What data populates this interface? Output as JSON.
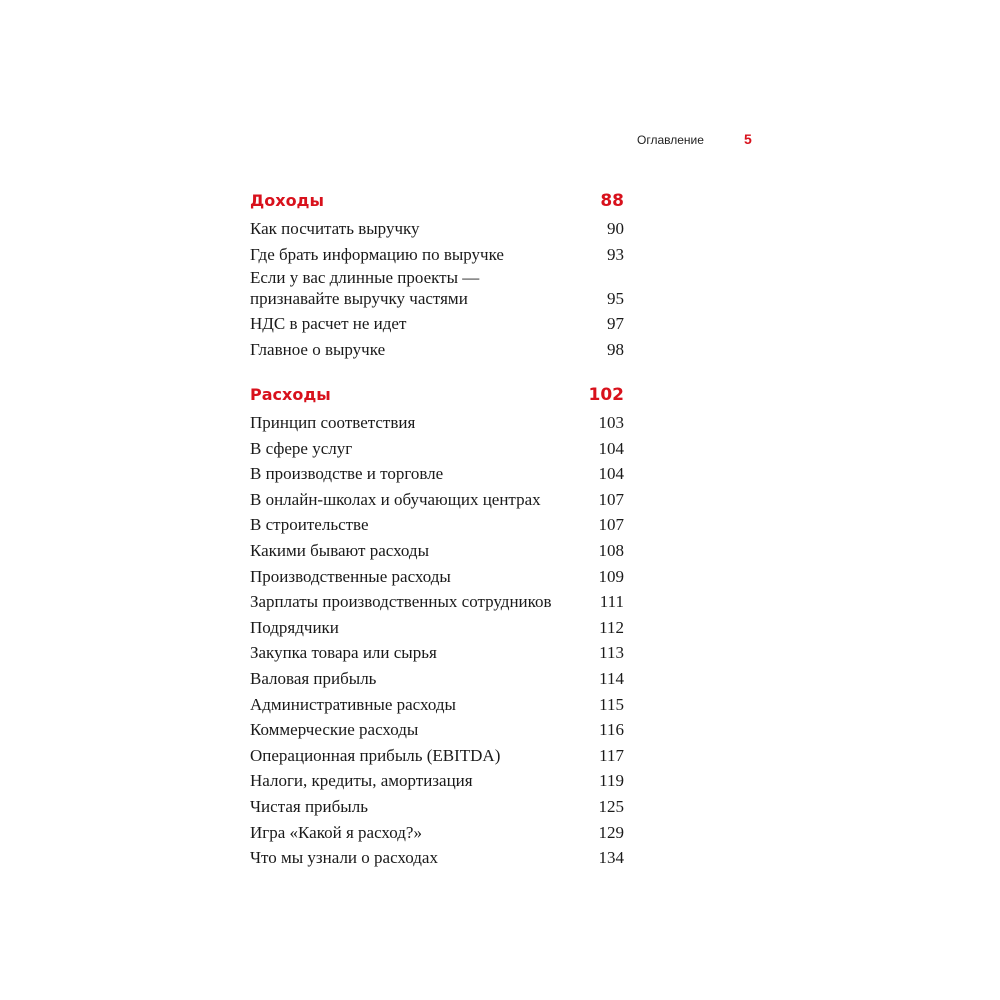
{
  "header": {
    "running_title": "Оглавление",
    "page_number": "5"
  },
  "sections": [
    {
      "title": "Доходы",
      "page": "88",
      "items": [
        {
          "title": "Как посчитать выручку",
          "page": "90"
        },
        {
          "title": "Где брать информацию по выручке",
          "page": "93"
        },
        {
          "title": "Если у вас длинные проекты —\nпризнавайте выручку частями",
          "page": "95"
        },
        {
          "title": "НДС в расчет не идет",
          "page": "97"
        },
        {
          "title": "Главное о выручке",
          "page": "98"
        }
      ]
    },
    {
      "title": "Расходы",
      "page": "102",
      "items": [
        {
          "title": "Принцип соответствия",
          "page": "103"
        },
        {
          "title": "В сфере услуг",
          "page": "104"
        },
        {
          "title": "В производстве и торговле",
          "page": "104"
        },
        {
          "title": "В онлайн-школах и обучающих центрах",
          "page": "107"
        },
        {
          "title": "В строительстве",
          "page": "107"
        },
        {
          "title": "Какими бывают расходы",
          "page": "108"
        },
        {
          "title": "Производственные расходы",
          "page": "109"
        },
        {
          "title": "Зарплаты производственных сотрудников",
          "page": "111"
        },
        {
          "title": "Подрядчики",
          "page": "112"
        },
        {
          "title": "Закупка товара или сырья",
          "page": "113"
        },
        {
          "title": "Валовая прибыль",
          "page": "114"
        },
        {
          "title": "Административные расходы",
          "page": "115"
        },
        {
          "title": "Коммерческие расходы",
          "page": "116"
        },
        {
          "title": "Операционная прибыль (EBITDA)",
          "page": "117"
        },
        {
          "title": "Налоги, кредиты, амортизация",
          "page": "119"
        },
        {
          "title": "Чистая прибыль",
          "page": "125"
        },
        {
          "title": "Игра «Какой я расход?»",
          "page": "129"
        },
        {
          "title": "Что мы узнали о расходах",
          "page": "134"
        }
      ]
    }
  ],
  "colors": {
    "accent": "#d8111c",
    "text": "#1a1a1a"
  }
}
